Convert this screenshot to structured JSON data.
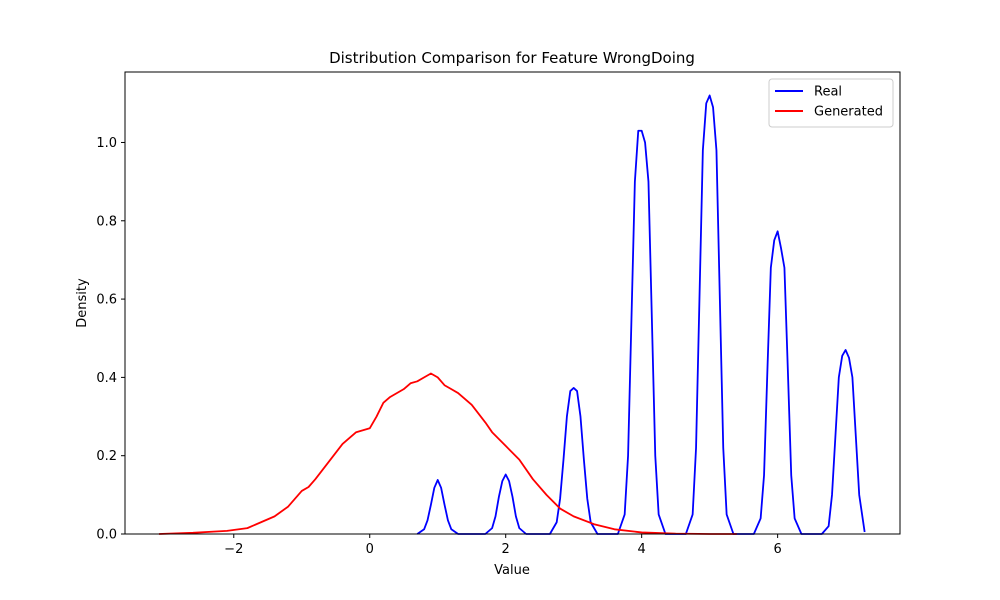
{
  "chart_data": {
    "type": "line",
    "title": "Distribution Comparison for Feature WrongDoing",
    "xlabel": "Value",
    "ylabel": "Density",
    "xlim": [
      -3.6,
      7.8
    ],
    "ylim": [
      0,
      1.18
    ],
    "xticks": [
      -2,
      0,
      2,
      4,
      6
    ],
    "xtick_labels": [
      "−2",
      "0",
      "2",
      "4",
      "6"
    ],
    "yticks": [
      0.0,
      0.2,
      0.4,
      0.6,
      0.8,
      1.0
    ],
    "ytick_labels": [
      "0.0",
      "0.2",
      "0.4",
      "0.6",
      "0.8",
      "1.0"
    ],
    "grid": false,
    "legend_position": "top-right",
    "series": [
      {
        "name": "Real",
        "color": "#0000ff",
        "x": [
          0.7,
          0.8,
          0.85,
          0.9,
          0.95,
          1.0,
          1.05,
          1.1,
          1.15,
          1.2,
          1.3,
          1.5,
          1.7,
          1.8,
          1.85,
          1.9,
          1.95,
          2.0,
          2.05,
          2.1,
          2.15,
          2.2,
          2.3,
          2.5,
          2.65,
          2.75,
          2.8,
          2.85,
          2.9,
          2.95,
          3.0,
          3.05,
          3.1,
          3.15,
          3.2,
          3.25,
          3.35,
          3.5,
          3.65,
          3.75,
          3.8,
          3.85,
          3.9,
          3.95,
          4.0,
          4.05,
          4.1,
          4.15,
          4.2,
          4.25,
          4.35,
          4.5,
          4.65,
          4.75,
          4.8,
          4.85,
          4.9,
          4.95,
          5.0,
          5.05,
          5.1,
          5.15,
          5.2,
          5.25,
          5.35,
          5.5,
          5.65,
          5.75,
          5.8,
          5.85,
          5.9,
          5.95,
          6.0,
          6.05,
          6.1,
          6.15,
          6.2,
          6.25,
          6.35,
          6.5,
          6.65,
          6.75,
          6.8,
          6.85,
          6.9,
          6.95,
          7.0,
          7.05,
          7.1,
          7.15,
          7.2,
          7.28
        ],
        "y": [
          0.0,
          0.012,
          0.035,
          0.075,
          0.118,
          0.138,
          0.118,
          0.075,
          0.035,
          0.012,
          0.0,
          0.0,
          0.0,
          0.015,
          0.045,
          0.095,
          0.135,
          0.152,
          0.135,
          0.095,
          0.045,
          0.015,
          0.0,
          0.0,
          0.0,
          0.03,
          0.09,
          0.19,
          0.3,
          0.365,
          0.373,
          0.365,
          0.3,
          0.19,
          0.09,
          0.03,
          0.0,
          0.0,
          0.0,
          0.05,
          0.2,
          0.55,
          0.9,
          1.03,
          1.03,
          1.0,
          0.9,
          0.55,
          0.2,
          0.05,
          0.0,
          0.0,
          0.0,
          0.05,
          0.22,
          0.6,
          0.98,
          1.1,
          1.12,
          1.09,
          0.98,
          0.6,
          0.22,
          0.05,
          0.0,
          0.0,
          0.0,
          0.04,
          0.15,
          0.42,
          0.68,
          0.75,
          0.773,
          0.73,
          0.68,
          0.42,
          0.15,
          0.04,
          0.0,
          0.0,
          0.0,
          0.02,
          0.1,
          0.25,
          0.4,
          0.455,
          0.47,
          0.45,
          0.4,
          0.25,
          0.1,
          0.005
        ]
      },
      {
        "name": "Generated",
        "color": "#ff0000",
        "x": [
          -3.1,
          -2.6,
          -2.3,
          -2.1,
          -1.8,
          -1.6,
          -1.4,
          -1.2,
          -1.0,
          -0.9,
          -0.8,
          -0.6,
          -0.4,
          -0.2,
          0.0,
          0.1,
          0.2,
          0.3,
          0.5,
          0.6,
          0.7,
          0.8,
          0.9,
          1.0,
          1.1,
          1.2,
          1.3,
          1.5,
          1.7,
          1.8,
          2.0,
          2.2,
          2.4,
          2.6,
          2.8,
          3.0,
          3.3,
          3.6,
          4.0,
          4.5,
          5.0,
          5.4
        ],
        "y": [
          0.0,
          0.003,
          0.006,
          0.008,
          0.015,
          0.03,
          0.045,
          0.07,
          0.11,
          0.12,
          0.14,
          0.185,
          0.23,
          0.26,
          0.27,
          0.3,
          0.335,
          0.35,
          0.37,
          0.385,
          0.39,
          0.4,
          0.41,
          0.4,
          0.38,
          0.37,
          0.36,
          0.33,
          0.285,
          0.26,
          0.225,
          0.19,
          0.14,
          0.1,
          0.065,
          0.045,
          0.025,
          0.012,
          0.004,
          0.001,
          0.0,
          0.0
        ]
      }
    ]
  }
}
